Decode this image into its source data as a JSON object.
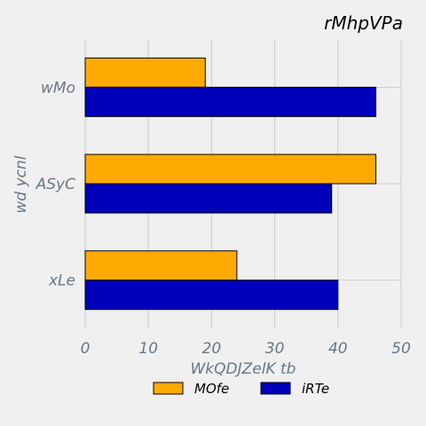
{
  "chart_data": {
    "type": "bar",
    "orientation": "horizontal",
    "title": "rMhpVPa",
    "xlabel": "WkQDJZelK tb",
    "ylabel": "wd ycnl",
    "categories": [
      "wMo",
      "ASyC",
      "xLe"
    ],
    "series": [
      {
        "name": "MOfe",
        "color": "#ffaa00",
        "values": [
          19,
          46,
          24
        ]
      },
      {
        "name": "iRTe",
        "color": "#0000bb",
        "values": [
          46,
          39,
          40
        ]
      }
    ],
    "xlim": [
      0,
      50
    ],
    "xticks": [
      "0",
      "10",
      "20",
      "30",
      "40",
      "50"
    ],
    "grid": true,
    "legend_position": "bottom-center",
    "background_color": "#f0f0f0",
    "grid_color": "#cbcbcb",
    "label_color": "#667788"
  }
}
